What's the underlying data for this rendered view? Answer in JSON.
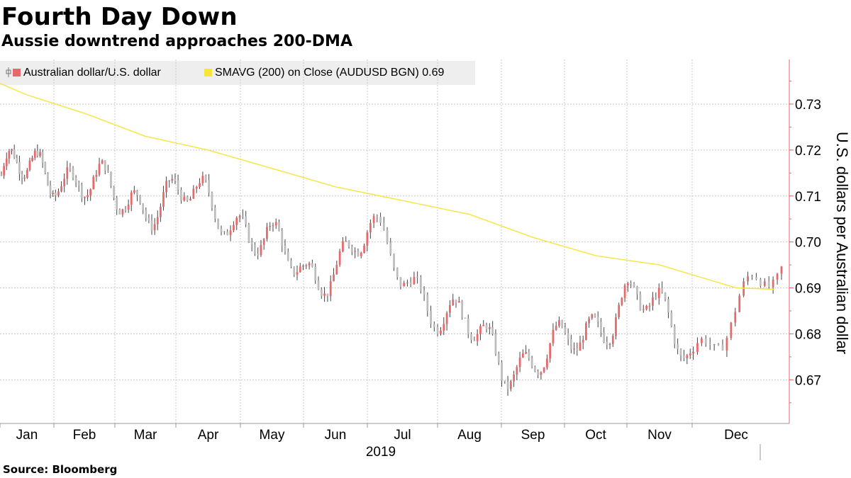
{
  "title": "Fourth Day Down",
  "subtitle": "Aussie downtrend approaches 200-DMA",
  "source": "Source:  Bloomberg",
  "legend": [
    {
      "label": "Australian dollar/U.S. dollar",
      "color": "#e8696b"
    },
    {
      "label": "SMAVG (200)  on Close (AUDUSD BGN) 0.69",
      "color": "#f5e53c"
    }
  ],
  "colors": {
    "up_bar": "#e8696b",
    "down_bar": "#bdbdbd",
    "sma": "#f5e53c",
    "axis": "#e8696b",
    "grid": "#c8c8c8"
  },
  "chart_data": {
    "type": "candlestick",
    "title": "Fourth Day Down",
    "subtitle": "Aussie downtrend approaches 200-DMA",
    "ylabel": "U.S. dollars per Australian dollar",
    "xlabel": "2019",
    "ylim": [
      0.6605,
      0.7397
    ],
    "yticks": [
      "0.67",
      "0.68",
      "0.69",
      "0.70",
      "0.71",
      "0.72",
      "0.73"
    ],
    "x_categories": [
      "Jan",
      "Feb",
      "Mar",
      "Apr",
      "May",
      "Jun",
      "Jul",
      "Aug",
      "Sep",
      "Oct",
      "Nov",
      "Dec"
    ],
    "grid": true,
    "legend_position": "top-left",
    "series": [
      {
        "name": "Australian dollar/U.S. dollar",
        "monthly_closes": [
          {
            "month": "Jan",
            "close": 0.716
          },
          {
            "month": "Feb",
            "close": 0.709
          },
          {
            "month": "Mar",
            "close": 0.71
          },
          {
            "month": "Apr",
            "close": 0.705
          },
          {
            "month": "May",
            "close": 0.692
          },
          {
            "month": "Jun",
            "close": 0.701
          },
          {
            "month": "Jul",
            "close": 0.686
          },
          {
            "month": "Aug",
            "close": 0.674
          },
          {
            "month": "Sep",
            "close": 0.676
          },
          {
            "month": "Oct",
            "close": 0.689
          },
          {
            "month": "Nov",
            "close": 0.677
          },
          {
            "month": "Dec",
            "close": 0.693
          }
        ]
      },
      {
        "name": "SMAVG (200)  on Close (AUDUSD BGN) 0.69",
        "points": [
          {
            "month": "Jan",
            "value": 0.732
          },
          {
            "month": "Feb",
            "value": 0.728
          },
          {
            "month": "Mar",
            "value": 0.723
          },
          {
            "month": "Apr",
            "value": 0.72
          },
          {
            "month": "May",
            "value": 0.716
          },
          {
            "month": "Jun",
            "value": 0.712
          },
          {
            "month": "Jul",
            "value": 0.709
          },
          {
            "month": "Aug",
            "value": 0.706
          },
          {
            "month": "Sep",
            "value": 0.701
          },
          {
            "month": "Oct",
            "value": 0.697
          },
          {
            "month": "Nov",
            "value": 0.695
          },
          {
            "month": "Dec",
            "value": 0.69
          }
        ]
      }
    ]
  }
}
